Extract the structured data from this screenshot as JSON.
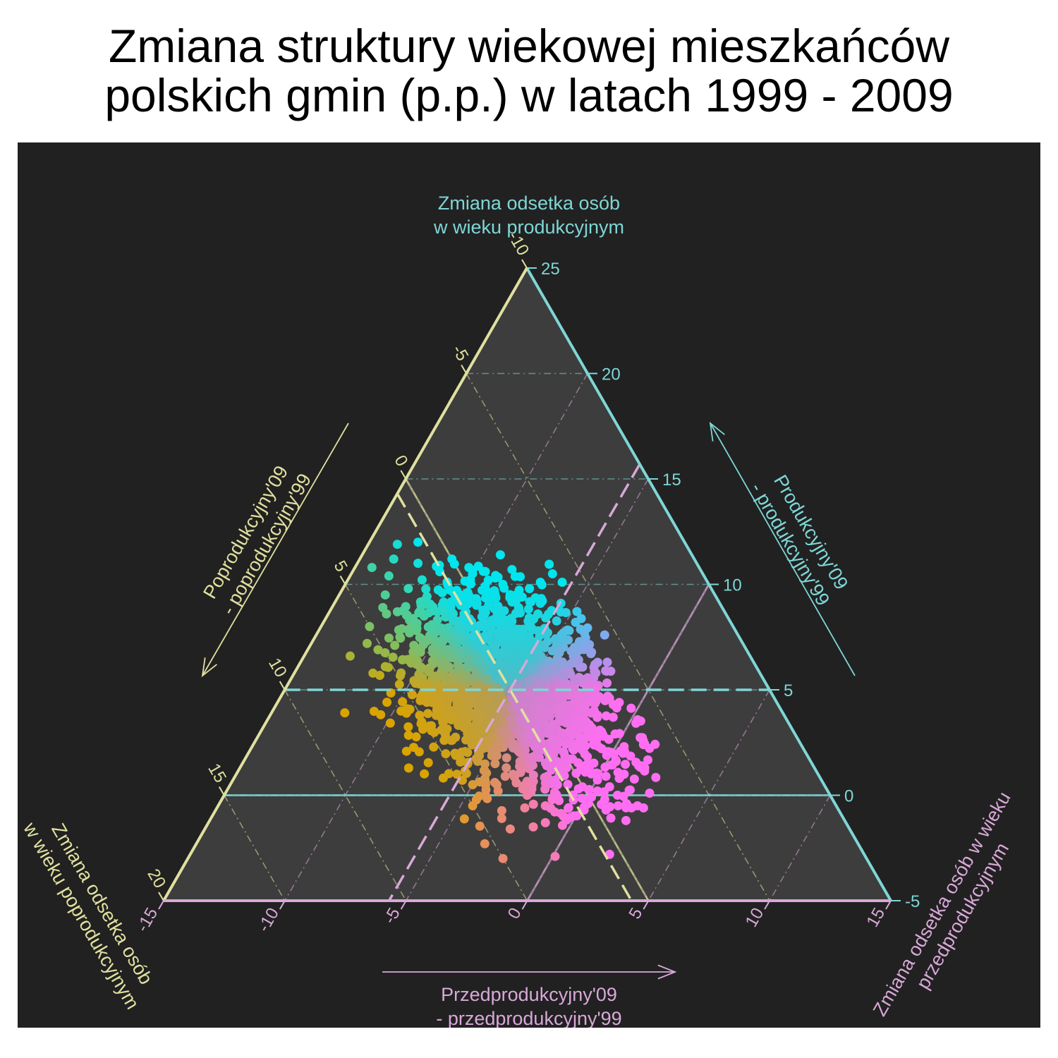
{
  "title": {
    "line1": "Zmiana struktury wiekowej mieszkańców",
    "line2": "polskich gmin (p.p.) w latach 1999 - 2009"
  },
  "chart_data": {
    "type": "scatter",
    "subtype": "ternary",
    "title": "Zmiana struktury wiekowej mieszkańców polskich gmin (p.p.) w latach 1999 - 2009",
    "colors": {
      "background": "#212121",
      "triangle_fill": "#3d3d3d",
      "productive_axis": "#7fd6d6",
      "postproductive_axis": "#e0e0a0",
      "preproductive_axis": "#d8a8d8"
    },
    "axes": {
      "top": {
        "title": [
          "Zmiana odsetka osób",
          "w wieku produkcyjnym"
        ],
        "arrow_label": [
          "Produkcyjny'09",
          "- produkcyjny'99"
        ],
        "range": [
          -5,
          25
        ],
        "ticks": [
          "-5",
          "0",
          "5",
          "10",
          "15",
          "20",
          "25"
        ]
      },
      "left": {
        "title": [
          "Zmiana odsetka osób",
          "w wieku poprodukcyjnym"
        ],
        "arrow_label": [
          "Poprodukcyjny'09",
          "- poprodukcyjny'99"
        ],
        "range": [
          -10,
          20
        ],
        "ticks": [
          "-10",
          "-5",
          "0",
          "5",
          "10",
          "15",
          "20"
        ]
      },
      "right": {
        "title": [
          "Zmiana odsetka osób w wieku",
          "przedprodukcyjnym"
        ],
        "arrow_label": [
          "Przedprodukcyjny'09",
          "- przedprodukcyjny'99"
        ],
        "range": [
          -15,
          15
        ],
        "ticks": [
          "-15",
          "-10",
          "-5",
          "0",
          "5",
          "10",
          "15"
        ]
      }
    },
    "reference_lines": {
      "zero": {
        "productive": 0,
        "postproductive": 0,
        "preproductive": 0
      },
      "mean": {
        "productive": 5,
        "postproductive": 0.7,
        "preproductive": -5.7
      }
    },
    "point_colors": [
      "#00e5ee",
      "#22d3d3",
      "#1bb8c4",
      "#2ea88e",
      "#63b04a",
      "#9aa818",
      "#d9a400",
      "#e2a512",
      "#d38f7b",
      "#e58aa8",
      "#f07ad8",
      "#ff6ef2",
      "#b88ef0",
      "#8aa0ee",
      "#c77aec"
    ],
    "points_summary": "Dense cluster of several thousand gminas centered near productive +5, postproductive +0.7, preproductive -5.7; roughly spanning productive -2..13, postproductive -4..12, preproductive -12..3; colored by composition",
    "points": [
      [
        11.9,
        1.9,
        -13.8
      ],
      [
        12.0,
        1.0,
        -13.0
      ],
      [
        11.0,
        1.5,
        -12.5
      ],
      [
        11.2,
        0.0,
        -11.2
      ],
      [
        10.8,
        3.5,
        -14.3
      ],
      [
        10.2,
        -1.0,
        -9.2
      ],
      [
        11.4,
        -2.1,
        -9.3
      ],
      [
        10.1,
        -3.1,
        -7.0
      ],
      [
        10.1,
        -4.0,
        -6.1
      ],
      [
        10.5,
        -3.8,
        -6.7
      ],
      [
        7.6,
        -4.5,
        -3.1
      ],
      [
        10.5,
        -0.5,
        -10.0
      ],
      [
        10.0,
        -1.5,
        -8.5
      ],
      [
        9.5,
        0.5,
        -10.0
      ],
      [
        9.8,
        2.5,
        -12.3
      ],
      [
        9.8,
        -2.5,
        -7.3
      ],
      [
        9.7,
        -1.0,
        -8.7
      ],
      [
        9.4,
        -2.0,
        -7.4
      ],
      [
        9.0,
        1.5,
        -10.5
      ],
      [
        8.7,
        3.5,
        -12.2
      ],
      [
        8.5,
        2.5,
        -11.0
      ],
      [
        8.6,
        4.0,
        -12.6
      ],
      [
        8.3,
        3.2,
        -11.5
      ],
      [
        8.0,
        5.0,
        -13.0
      ],
      [
        7.2,
        5.5,
        -12.7
      ],
      [
        6.9,
        5.2,
        -12.1
      ],
      [
        6.5,
        4.0,
        -10.5
      ],
      [
        6.6,
        6.5,
        -13.1
      ],
      [
        6.1,
        5.3,
        -11.4
      ],
      [
        5.8,
        4.8,
        -10.6
      ],
      [
        6.5,
        2.0,
        -8.5
      ],
      [
        7.5,
        0.5,
        -8.0
      ],
      [
        7.0,
        -1.0,
        -6.0
      ],
      [
        6.5,
        -2.0,
        -4.5
      ],
      [
        6.0,
        -1.5,
        -4.5
      ],
      [
        5.5,
        -2.5,
        -3.0
      ],
      [
        5.5,
        -1.0,
        -4.5
      ],
      [
        5.0,
        -0.5,
        -4.5
      ],
      [
        5.0,
        1.5,
        -6.5
      ],
      [
        5.5,
        0.5,
        -6.0
      ],
      [
        4.5,
        2.0,
        -6.5
      ],
      [
        4.2,
        4.0,
        -8.2
      ],
      [
        4.0,
        3.5,
        -7.5
      ],
      [
        3.5,
        2.5,
        -6.0
      ],
      [
        3.8,
        0.5,
        -4.3
      ],
      [
        4.3,
        -1.5,
        -2.8
      ],
      [
        4.3,
        -3.2,
        -1.1
      ],
      [
        4.6,
        -3.2,
        -1.4
      ],
      [
        4.4,
        -3.5,
        -0.9
      ],
      [
        3.7,
        -2.9,
        -0.8
      ],
      [
        3.0,
        -2.0,
        -1.0
      ],
      [
        3.5,
        -1.0,
        -2.5
      ],
      [
        3.0,
        1.0,
        -4.0
      ],
      [
        2.5,
        2.5,
        -5.0
      ],
      [
        2.0,
        3.5,
        -5.5
      ],
      [
        1.5,
        2.0,
        -3.5
      ],
      [
        2.2,
        0.5,
        -2.7
      ],
      [
        2.5,
        -1.5,
        -1.0
      ],
      [
        2.0,
        -2.5,
        0.5
      ],
      [
        2.1,
        -2.4,
        0.3
      ],
      [
        1.3,
        -3.0,
        1.7
      ],
      [
        1.0,
        -2.0,
        1.0
      ],
      [
        1.2,
        -0.5,
        -0.7
      ],
      [
        0.5,
        1.0,
        -1.5
      ],
      [
        0.0,
        2.5,
        -2.5
      ],
      [
        0.5,
        3.5,
        -4.0
      ],
      [
        0.5,
        4.5,
        -5.0
      ],
      [
        1.0,
        4.9,
        -5.9
      ],
      [
        -0.5,
        5.0,
        -4.5
      ],
      [
        -0.5,
        2.0,
        -1.5
      ],
      [
        -0.1,
        1.5,
        -1.4
      ],
      [
        -0.7,
        0.5,
        0.2
      ],
      [
        -0.5,
        -1.0,
        1.5
      ],
      [
        -0.6,
        -2.0,
        2.6
      ],
      [
        0.8,
        -1.7,
        0.9
      ],
      [
        -1.1,
        4.1,
        -3.0
      ],
      [
        -1.6,
        4.0,
        -2.4
      ],
      [
        -1.0,
        1.5,
        -0.5
      ],
      [
        -1.5,
        3.0,
        -1.5
      ],
      [
        0.2,
        -0.5,
        0.3
      ],
      [
        -2.3,
        5.4,
        -3.1
      ],
      [
        -3.0,
        5.0,
        -2.0
      ],
      [
        -2.9,
        2.8,
        0.1
      ],
      [
        -2.8,
        0.5,
        2.3
      ],
      [
        -0.5,
        -1.8,
        2.3
      ],
      [
        -0.2,
        -0.6,
        0.8
      ],
      [
        -0.4,
        -1.4,
        1.8
      ],
      [
        -0.6,
        2.9,
        -2.3
      ],
      [
        0.9,
        -1.2,
        0.3
      ],
      [
        1.5,
        4.2,
        -5.7
      ],
      [
        -0.6,
        -1.5,
        2.1
      ],
      [
        0.4,
        -1.1,
        0.7
      ],
      [
        1.4,
        -2.8,
        1.4
      ],
      [
        0.1,
        -2.6,
        2.5
      ],
      [
        -0.7,
        -0.4,
        1.1
      ],
      [
        5.9,
        0.0,
        -5.9
      ],
      [
        6.8,
        3.8,
        -10.6
      ],
      [
        7.7,
        3.5,
        -11.2
      ],
      [
        7.9,
        1.9,
        -9.8
      ],
      [
        8.6,
        0.8,
        -9.4
      ],
      [
        7.4,
        -2.4,
        -5.0
      ],
      [
        9.1,
        -2.6,
        -6.5
      ],
      [
        9.5,
        3.6,
        -13.1
      ],
      [
        9.6,
        1.2,
        -10.8
      ],
      [
        10.8,
        -0.5,
        -10.3
      ],
      [
        11.2,
        2.4,
        -13.6
      ],
      [
        10.4,
        3.0,
        -13.4
      ],
      [
        10.6,
        0.8,
        -11.4
      ],
      [
        8.9,
        -1.6,
        -7.3
      ],
      [
        8.2,
        -3.6,
        -4.6
      ],
      [
        6.2,
        -3.4,
        -2.8
      ],
      [
        5.2,
        -2.8,
        -2.4
      ],
      [
        4.8,
        -1.5,
        -3.3
      ],
      [
        5.6,
        2.8,
        -8.4
      ],
      [
        4.1,
        5.4,
        -9.5
      ],
      [
        3.3,
        4.8,
        -8.1
      ],
      [
        2.8,
        1.3,
        -4.1
      ],
      [
        3.1,
        -0.3,
        -2.8
      ],
      [
        2.4,
        -0.8,
        -1.6
      ],
      [
        1.8,
        1.6,
        -3.4
      ],
      [
        7.0,
        2.8,
        -9.8
      ],
      [
        5.0,
        3.3,
        -8.3
      ],
      [
        3.9,
        -2.1,
        -1.8
      ],
      [
        6.3,
        0.9,
        -7.2
      ],
      [
        8.9,
        4.0,
        -12.9
      ],
      [
        0.2,
        3.6,
        -3.8
      ],
      [
        1.2,
        0.9,
        -2.1
      ],
      [
        -0.2,
        0.2,
        0.0
      ],
      [
        -1.3,
        2.4,
        -1.1
      ],
      [
        2.4,
        -3.5,
        1.1
      ]
    ]
  }
}
